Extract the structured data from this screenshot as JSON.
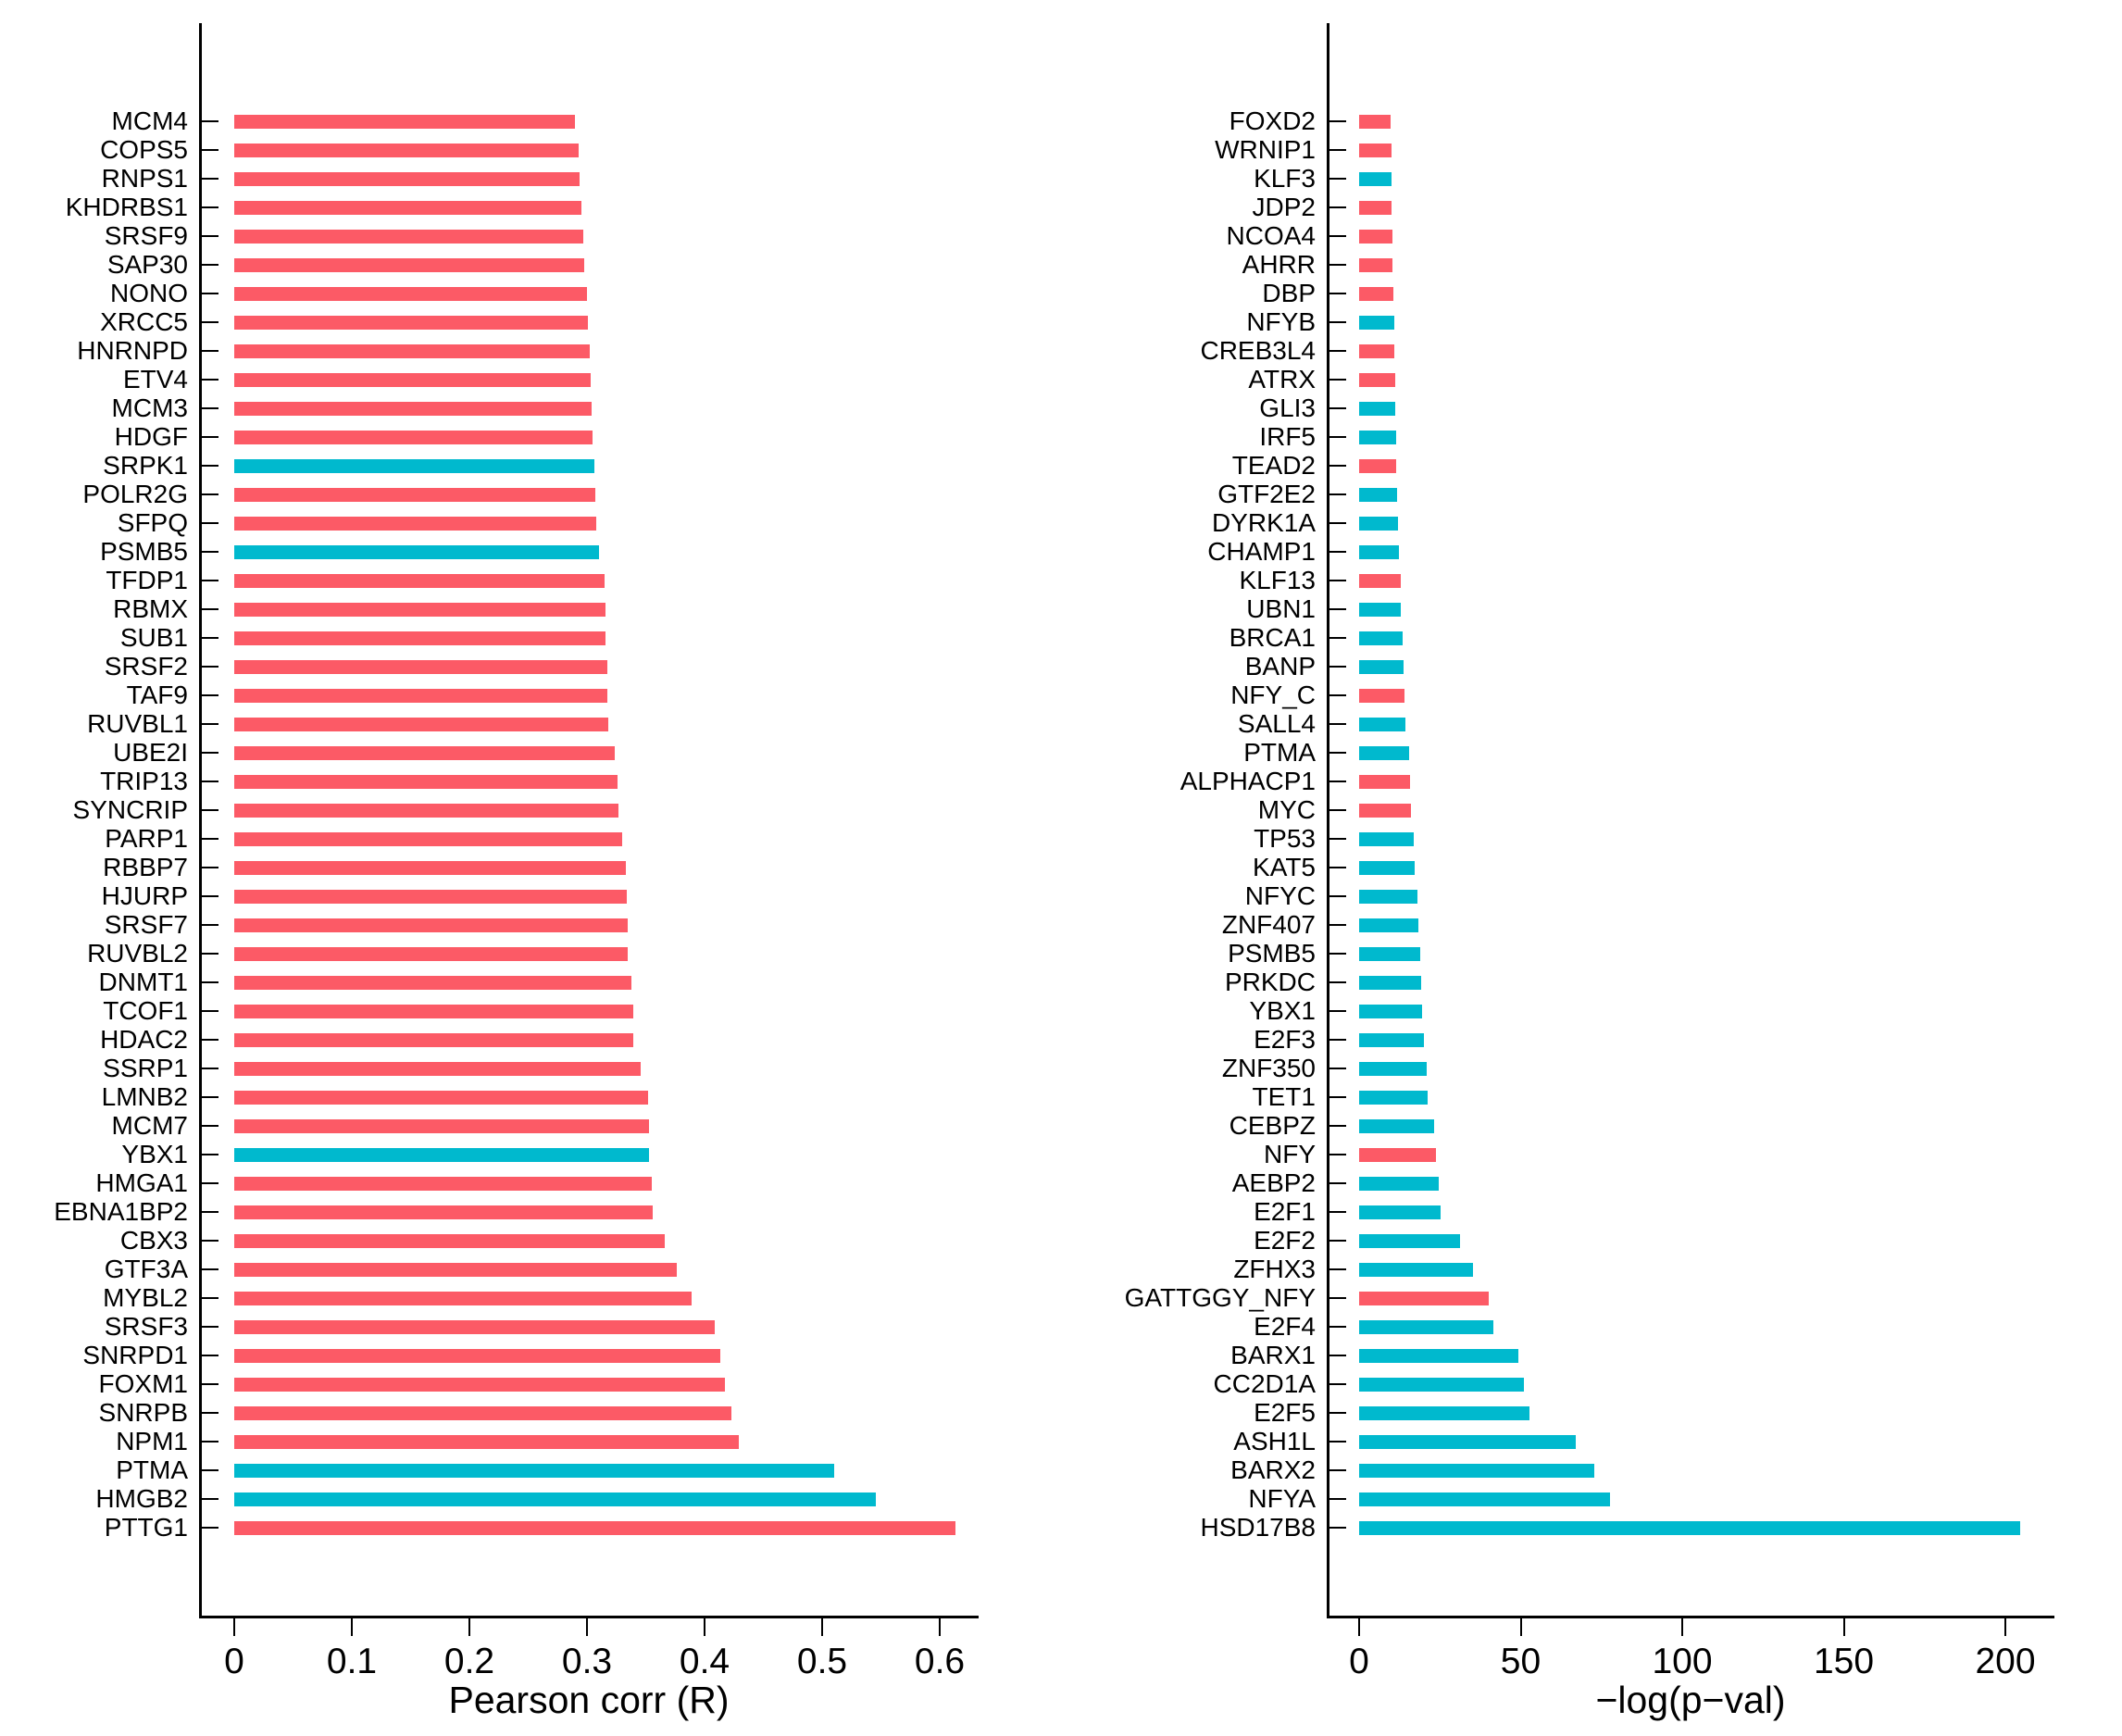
{
  "style": {
    "red": "#FC5A66",
    "cyan": "#00B9CE",
    "axis_color": "#000000",
    "background": "#FFFFFF"
  },
  "chart_data": [
    {
      "type": "bar",
      "orientation": "horizontal",
      "title": "",
      "xlabel": "Pearson corr (R)",
      "ylabel": "",
      "grid": false,
      "legend": null,
      "xlim": [
        -0.03,
        0.633
      ],
      "xticks": [
        0,
        0.1,
        0.2,
        0.3,
        0.4,
        0.5,
        0.6
      ],
      "xtick_labels": [
        "0",
        "0.1",
        "0.2",
        "0.3",
        "0.4",
        "0.5",
        "0.6"
      ],
      "categories": [
        "MCM4",
        "COPS5",
        "RNPS1",
        "KHDRBS1",
        "SRSF9",
        "SAP30",
        "NONO",
        "XRCC5",
        "HNRNPD",
        "ETV4",
        "MCM3",
        "HDGF",
        "SRPK1",
        "POLR2G",
        "SFPQ",
        "PSMB5",
        "TFDP1",
        "RBMX",
        "SUB1",
        "SRSF2",
        "TAF9",
        "RUVBL1",
        "UBE2I",
        "TRIP13",
        "SYNCRIP",
        "PARP1",
        "RBBP7",
        "HJURP",
        "SRSF7",
        "RUVBL2",
        "DNMT1",
        "TCOF1",
        "HDAC2",
        "SSRP1",
        "LMNB2",
        "MCM7",
        "YBX1",
        "HMGA1",
        "EBNA1BP2",
        "CBX3",
        "GTF3A",
        "MYBL2",
        "SRSF3",
        "SNRPD1",
        "FOXM1",
        "SNRPB",
        "NPM1",
        "PTMA",
        "HMGB2",
        "PTTG1"
      ],
      "values": [
        0.29,
        0.293,
        0.294,
        0.295,
        0.297,
        0.298,
        0.3,
        0.301,
        0.302,
        0.303,
        0.304,
        0.305,
        0.306,
        0.307,
        0.308,
        0.31,
        0.315,
        0.316,
        0.316,
        0.317,
        0.317,
        0.318,
        0.324,
        0.326,
        0.327,
        0.33,
        0.333,
        0.334,
        0.335,
        0.335,
        0.338,
        0.339,
        0.339,
        0.346,
        0.352,
        0.353,
        0.353,
        0.355,
        0.356,
        0.366,
        0.376,
        0.389,
        0.409,
        0.413,
        0.417,
        0.423,
        0.429,
        0.51,
        0.546,
        0.613
      ],
      "colors": [
        "r",
        "r",
        "r",
        "r",
        "r",
        "r",
        "r",
        "r",
        "r",
        "r",
        "r",
        "r",
        "c",
        "r",
        "r",
        "c",
        "r",
        "r",
        "r",
        "r",
        "r",
        "r",
        "r",
        "r",
        "r",
        "r",
        "r",
        "r",
        "r",
        "r",
        "r",
        "r",
        "r",
        "r",
        "r",
        "r",
        "c",
        "r",
        "r",
        "r",
        "r",
        "r",
        "r",
        "r",
        "r",
        "r",
        "r",
        "c",
        "c",
        "r"
      ]
    },
    {
      "type": "bar",
      "orientation": "horizontal",
      "title": "",
      "xlabel": "−log(p−val)",
      "ylabel": "",
      "grid": false,
      "legend": null,
      "xlim": [
        -10,
        215
      ],
      "xticks": [
        0,
        50,
        100,
        150,
        200
      ],
      "xtick_labels": [
        "0",
        "50",
        "100",
        "150",
        "200"
      ],
      "categories": [
        "FOXD2",
        "WRNIP1",
        "KLF3",
        "JDP2",
        "NCOA4",
        "AHRR",
        "DBP",
        "NFYB",
        "CREB3L4",
        "ATRX",
        "GLI3",
        "IRF5",
        "TEAD2",
        "GTF2E2",
        "DYRK1A",
        "CHAMP1",
        "KLF13",
        "UBN1",
        "BRCA1",
        "BANP",
        "NFY_C",
        "SALL4",
        "PTMA",
        "ALPHACP1",
        "MYC",
        "TP53",
        "KAT5",
        "NFYC",
        "ZNF407",
        "PSMB5",
        "PRKDC",
        "YBX1",
        "E2F3",
        "ZNF350",
        "TET1",
        "CEBPZ",
        "NFY",
        "AEBP2",
        "E2F1",
        "E2F2",
        "ZFHX3",
        "GATTGGY_NFY",
        "E2F4",
        "BARX1",
        "CC2D1A",
        "E2F5",
        "ASH1L",
        "BARX2",
        "NFYA",
        "HSD17B8"
      ],
      "values": [
        9.7,
        10.0,
        10.0,
        10.1,
        10.3,
        10.4,
        10.6,
        10.9,
        11.0,
        11.2,
        11.2,
        11.5,
        11.6,
        11.8,
        12.0,
        12.3,
        12.9,
        13.0,
        13.5,
        13.8,
        14.1,
        14.3,
        15.5,
        15.8,
        16.1,
        17.0,
        17.2,
        18.1,
        18.4,
        18.9,
        19.2,
        19.5,
        20.1,
        20.9,
        21.3,
        23.2,
        23.8,
        24.6,
        25.1,
        31.2,
        35.2,
        40.1,
        41.5,
        49.3,
        51.0,
        52.7,
        67.0,
        72.8,
        77.7,
        204.6
      ],
      "colors": [
        "r",
        "r",
        "c",
        "r",
        "r",
        "r",
        "r",
        "c",
        "r",
        "r",
        "c",
        "c",
        "r",
        "c",
        "c",
        "c",
        "r",
        "c",
        "c",
        "c",
        "r",
        "c",
        "c",
        "r",
        "r",
        "c",
        "c",
        "c",
        "c",
        "c",
        "c",
        "c",
        "c",
        "c",
        "c",
        "c",
        "r",
        "c",
        "c",
        "c",
        "c",
        "r",
        "c",
        "c",
        "c",
        "c",
        "c",
        "c",
        "c",
        "c"
      ]
    }
  ]
}
